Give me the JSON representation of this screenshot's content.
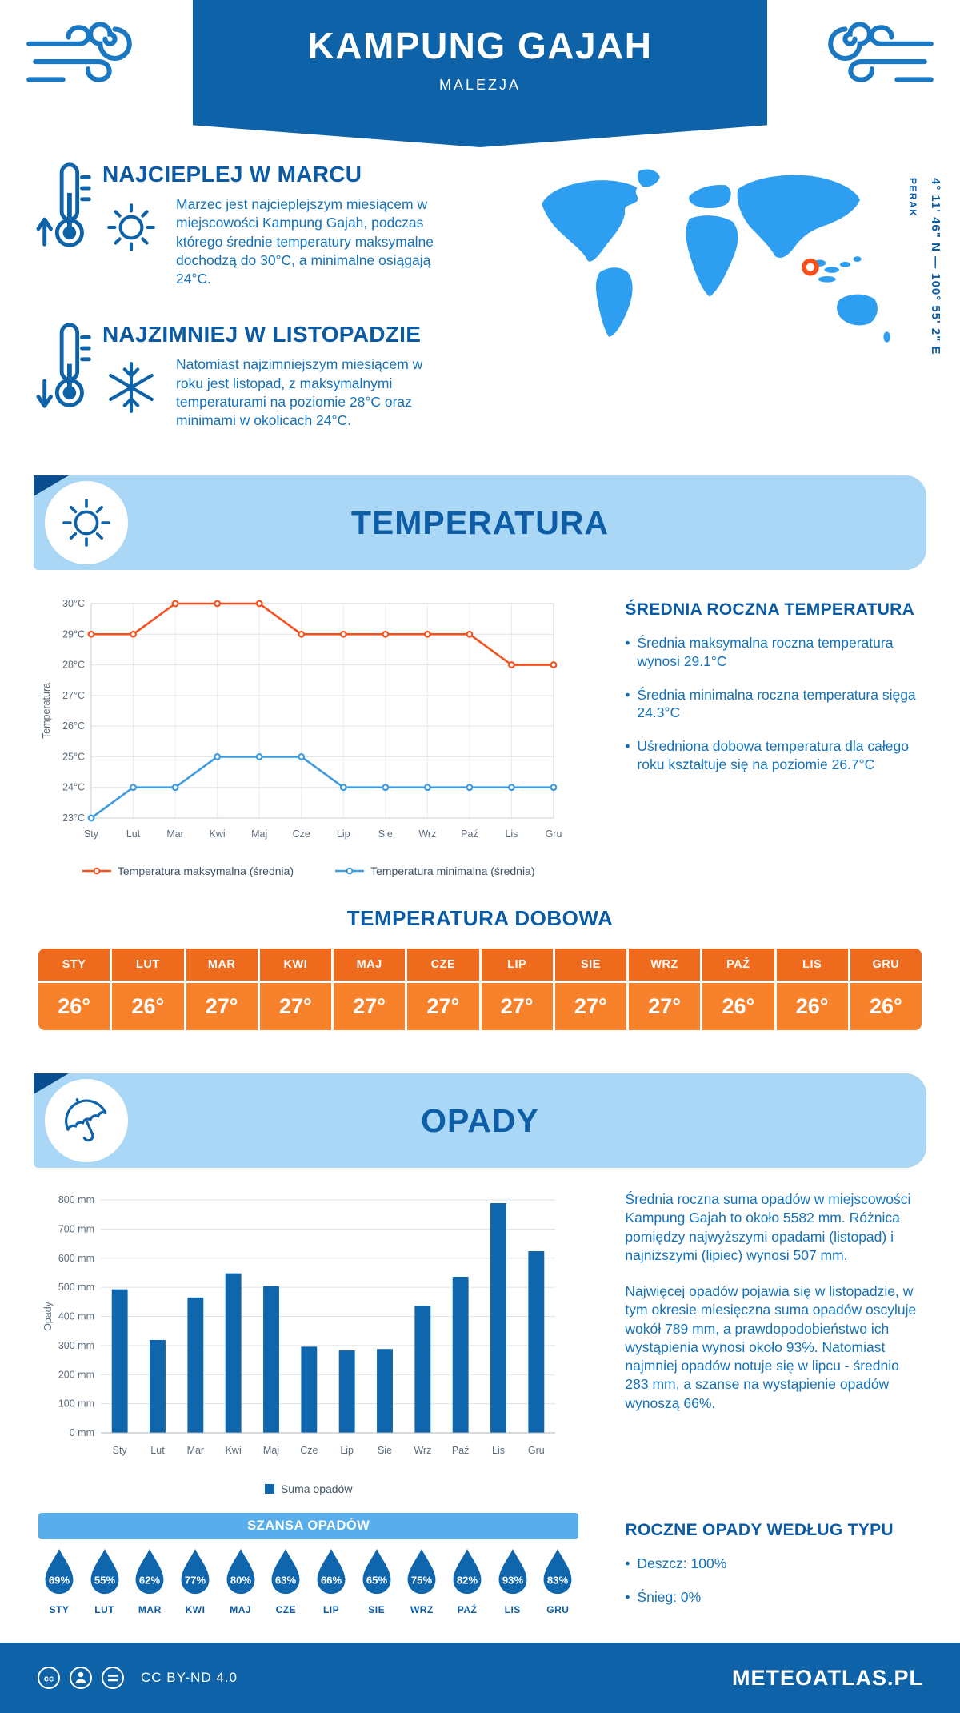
{
  "header": {
    "title": "KAMPUNG GAJAH",
    "subtitle": "MALEZJA"
  },
  "highlights": [
    {
      "heading": "NAJCIEPLEJ W MARCU",
      "text": "Marzec jest najcieplejszym miesiącem w miejscowości Kampung Gajah, podczas którego średnie temperatury maksymalne dochodzą do 30°C, a minimalne osiągają 24°C."
    },
    {
      "heading": "NAJZIMNIEJ W LISTOPADZIE",
      "text": "Natomiast najzimniejszym miesiącem w roku jest listopad, z maksymalnymi temperaturami na poziomie 28°C oraz minimami w okolicach 24°C."
    }
  ],
  "map": {
    "coordinates": "4° 11' 46\" N — 100° 55' 2\" E",
    "region": "PERAK"
  },
  "temperature_section": {
    "title": "TEMPERATURA",
    "annual_heading": "ŚREDNIA ROCZNA TEMPERATURA",
    "annual_bullets": [
      "Średnia maksymalna roczna temperatura wynosi 29.1°C",
      "Średnia minimalna roczna temperatura sięga 24.3°C",
      "Uśredniona dobowa temperatura dla całego roku kształtuje się na poziomie 26.7°C"
    ]
  },
  "daily_temperature": {
    "title": "TEMPERATURA DOBOWA",
    "months": [
      "STY",
      "LUT",
      "MAR",
      "KWI",
      "MAJ",
      "CZE",
      "LIP",
      "SIE",
      "WRZ",
      "PAŹ",
      "LIS",
      "GRU"
    ],
    "values": [
      "26°",
      "26°",
      "27°",
      "27°",
      "27°",
      "27°",
      "27°",
      "27°",
      "27°",
      "26°",
      "26°",
      "26°"
    ]
  },
  "precipitation_section": {
    "title": "OPADY",
    "paragraphs": [
      "Średnia roczna suma opadów w miejscowości Kampung Gajah to około 5582 mm. Różnica pomiędzy najwyższymi opadami (listopad) i najniższymi (lipiec) wynosi 507 mm.",
      "Najwięcej opadów pojawia się w listopadzie, w tym okresie miesięczna suma opadów oscyluje wokół 789 mm, a prawdopodobieństwo ich wystąpienia wynosi około 93%. Natomiast najmniej opadów notuje się w lipcu - średnio 283 mm, a szanse na wystąpienie opadów wynoszą 66%."
    ]
  },
  "rain_chance": {
    "title": "SZANSA OPADÓW",
    "months": [
      "STY",
      "LUT",
      "MAR",
      "KWI",
      "MAJ",
      "CZE",
      "LIP",
      "SIE",
      "WRZ",
      "PAŹ",
      "LIS",
      "GRU"
    ],
    "values": [
      69,
      55,
      62,
      77,
      80,
      63,
      66,
      65,
      75,
      82,
      93,
      83
    ]
  },
  "precip_type": {
    "heading": "ROCZNE OPADY WEDŁUG TYPU",
    "bullets": [
      "Deszcz: 100%",
      "Śnieg: 0%"
    ]
  },
  "footer": {
    "license": "CC BY-ND 4.0",
    "brand": "METEOATLAS.PL"
  },
  "colors": {
    "primary_dark": "#0e63a8",
    "accent_orange": "#f4511e",
    "light_band": "#a9d7f5",
    "map_blue": "#2e9ef0",
    "bar_blue": "#1066ad",
    "min_line_blue": "#3f9be0"
  },
  "chart_data": [
    {
      "type": "line",
      "title": "",
      "categories": [
        "Sty",
        "Lut",
        "Mar",
        "Kwi",
        "Maj",
        "Cze",
        "Lip",
        "Sie",
        "Wrz",
        "Paź",
        "Lis",
        "Gru"
      ],
      "series": [
        {
          "name": "Temperatura maksymalna (średnia)",
          "color": "#f4511e",
          "values": [
            29,
            29,
            30,
            30,
            30,
            29,
            29,
            29,
            29,
            29,
            28,
            28
          ]
        },
        {
          "name": "Temperatura minimalna (średnia)",
          "color": "#3f9be0",
          "values": [
            23,
            24,
            24,
            25,
            25,
            25,
            24,
            24,
            24,
            24,
            24,
            24
          ]
        }
      ],
      "ylabel": "Temperatura",
      "ylim": [
        23,
        30
      ],
      "ytick_step": 1,
      "ytick_suffix": "°C",
      "grid": true,
      "legend_position": "bottom"
    },
    {
      "type": "bar",
      "title": "",
      "categories": [
        "Sty",
        "Lut",
        "Mar",
        "Kwi",
        "Maj",
        "Cze",
        "Lip",
        "Sie",
        "Wrz",
        "Paź",
        "Lis",
        "Gru"
      ],
      "values": [
        493,
        319,
        465,
        548,
        504,
        296,
        283,
        288,
        437,
        536,
        789,
        624
      ],
      "color": "#1066ad",
      "ylabel": "Opady",
      "ylim": [
        0,
        800
      ],
      "ytick_step": 100,
      "ytick_suffix": " mm",
      "legend": "Suma opadów",
      "grid": true,
      "legend_position": "bottom"
    }
  ]
}
